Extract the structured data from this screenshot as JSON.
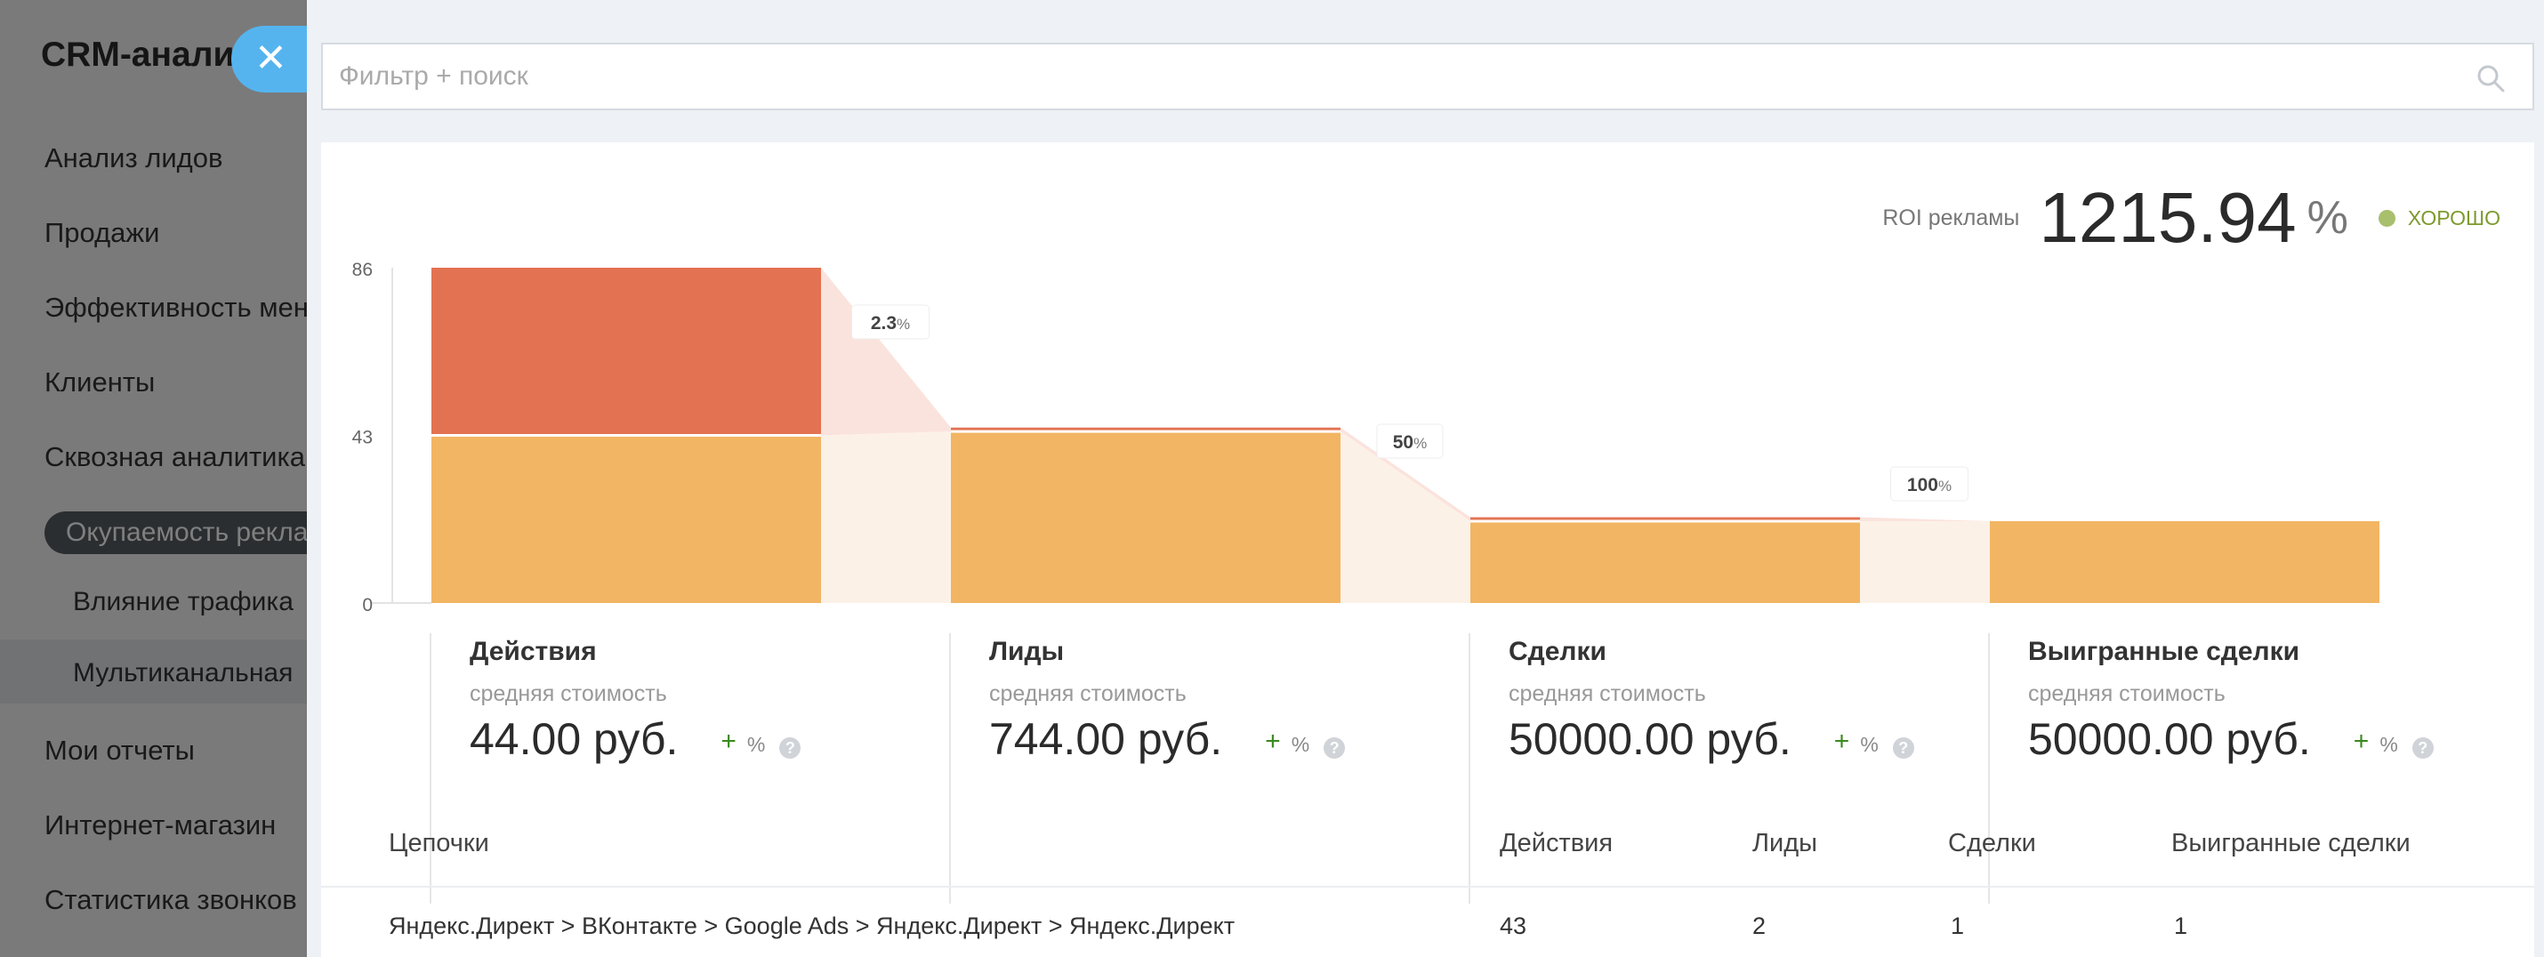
{
  "sidebar": {
    "title": "CRM-аналитика",
    "items": [
      {
        "label": "Анализ лидов"
      },
      {
        "label": "Продажи"
      },
      {
        "label": "Эффективность менеджеров"
      },
      {
        "label": "Клиенты"
      },
      {
        "label": "Сквозная аналитика"
      }
    ],
    "active_item": "Окупаемость рекламы",
    "subitems": [
      {
        "label": "Влияние трафика"
      },
      {
        "label": "Мультиканальная"
      }
    ],
    "bottom_items": [
      {
        "label": "Мои отчеты"
      },
      {
        "label": "Интернет-магазин"
      },
      {
        "label": "Статистика звонков"
      }
    ]
  },
  "search": {
    "placeholder": "Фильтр + поиск",
    "value": ""
  },
  "icons": {
    "close": "close-icon",
    "search": "search-icon",
    "help": "help-icon",
    "status": "status-dot-icon"
  },
  "roi": {
    "label": "ROI рекламы",
    "value": "1215.94",
    "unit": "%",
    "status": "ХОРОШО",
    "status_color": "#a8bf6d"
  },
  "chart_data": {
    "type": "bar",
    "categories": [
      "Действия",
      "Лиды",
      "Сделки",
      "Выигранные сделки"
    ],
    "series": [
      {
        "values": [
          43,
          1,
          1,
          0
        ],
        "color": "#e37252"
      },
      {
        "values": [
          43,
          44,
          21,
          21
        ],
        "color": "#f2b563"
      }
    ],
    "stacked": true,
    "ylim": [
      0,
      86
    ],
    "yticks": [
      "86",
      "43",
      "0"
    ],
    "conversions": [
      {
        "value": "2.3",
        "unit": "%"
      },
      {
        "value": "50",
        "unit": "%"
      },
      {
        "value": "100",
        "unit": "%"
      }
    ],
    "connector_colors": {
      "top": "#fbe3dd",
      "bottom": "#fcf1e7"
    }
  },
  "stages": [
    {
      "name": "Действия",
      "sub": "средняя стоимость",
      "cost": "44.00 руб.",
      "plus": "+",
      "pct": "%",
      "help": "?"
    },
    {
      "name": "Лиды",
      "sub": "средняя стоимость",
      "cost": "744.00 руб.",
      "plus": "+",
      "pct": "%",
      "help": "?"
    },
    {
      "name": "Сделки",
      "sub": "средняя стоимость",
      "cost": "50000.00 руб.",
      "plus": "+",
      "pct": "%",
      "help": "?"
    },
    {
      "name": "Выигранные сделки",
      "sub": "средняя стоимость",
      "cost": "50000.00 руб.",
      "plus": "+",
      "pct": "%",
      "help": "?"
    }
  ],
  "table": {
    "headers": [
      "Цепочки",
      "Действия",
      "Лиды",
      "Сделки",
      "Выигранные сделки"
    ],
    "rows": [
      [
        "Яндекс.Директ > ВКонтакте > Google Ads > Яндекс.Директ > Яндекс.Директ",
        "43",
        "2",
        "1",
        "1"
      ]
    ]
  }
}
